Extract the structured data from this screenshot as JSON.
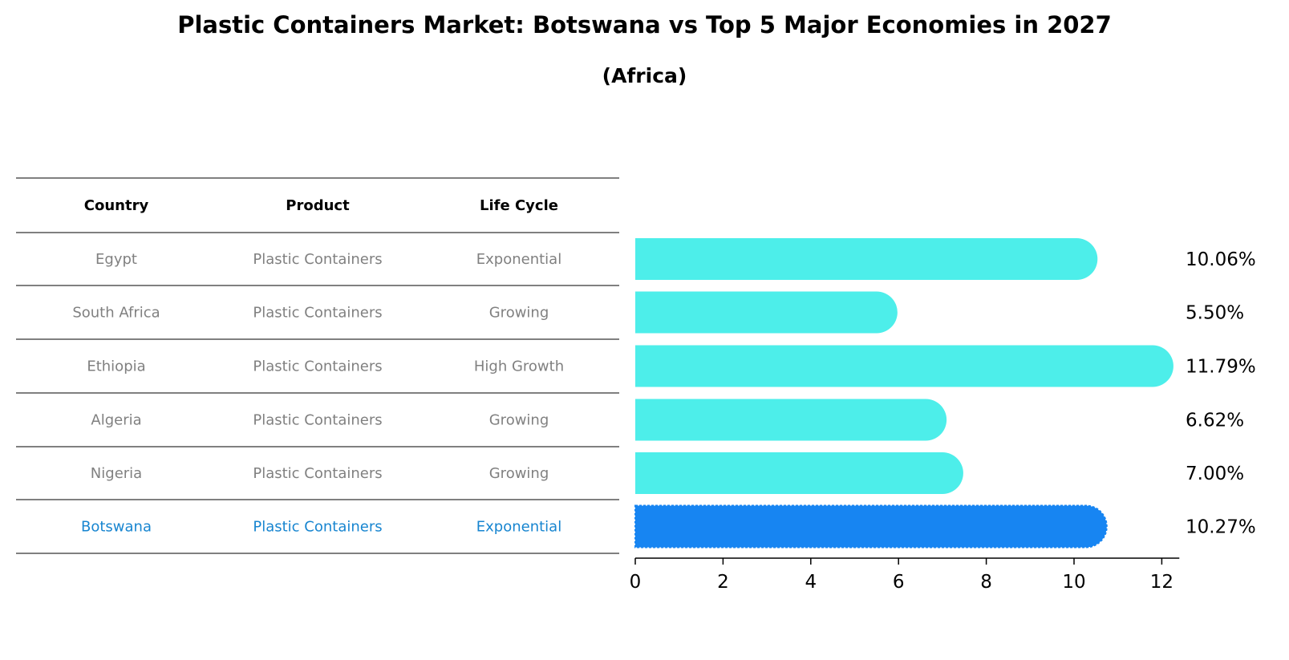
{
  "title": "Plastic Containers Market: Botswana vs Top 5 Major Economies in 2027",
  "subtitle": "(Africa)",
  "table": {
    "headers": [
      "Country",
      "Product",
      "Life Cycle"
    ],
    "rows": [
      {
        "country": "Egypt",
        "product": "Plastic Containers",
        "life_cycle": "Exponential",
        "highlight": false
      },
      {
        "country": "South Africa",
        "product": "Plastic Containers",
        "life_cycle": "Growing",
        "highlight": false
      },
      {
        "country": "Ethiopia",
        "product": "Plastic Containers",
        "life_cycle": "High Growth",
        "highlight": false
      },
      {
        "country": "Algeria",
        "product": "Plastic Containers",
        "life_cycle": "Growing",
        "highlight": false
      },
      {
        "country": "Nigeria",
        "product": "Plastic Containers",
        "life_cycle": "Growing",
        "highlight": false
      },
      {
        "country": "Botswana",
        "product": "Plastic Containers",
        "life_cycle": "Exponential",
        "highlight": true
      }
    ]
  },
  "colors": {
    "bar": "#4deeea",
    "highlight_bar": "#1785f2",
    "highlight_text": "#1785d0",
    "muted_text": "#808080",
    "text": "#000000"
  },
  "chart_data": {
    "type": "bar",
    "orientation": "horizontal",
    "categories": [
      "Egypt",
      "South Africa",
      "Ethiopia",
      "Algeria",
      "Nigeria",
      "Botswana"
    ],
    "values": [
      10.06,
      5.5,
      11.79,
      6.62,
      7.0,
      10.27
    ],
    "value_labels": [
      "10.06%",
      "5.50%",
      "11.79%",
      "6.62%",
      "7.00%",
      "10.27%"
    ],
    "xlim": [
      0,
      12.4
    ],
    "xticks": [
      0,
      2,
      4,
      6,
      8,
      10,
      12
    ],
    "grid": false
  }
}
